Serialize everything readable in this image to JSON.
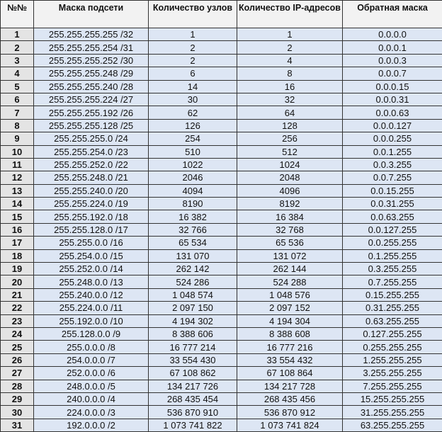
{
  "headers": [
    "№№",
    "Маска подсети",
    "Количество узлов",
    "Количество IP-адресов",
    "Обратная маска"
  ],
  "rows": [
    [
      "1",
      "255.255.255.255 /32",
      "1",
      "1",
      "0.0.0.0"
    ],
    [
      "2",
      "255.255.255.254 /31",
      "2",
      "2",
      "0.0.0.1"
    ],
    [
      "3",
      "255.255.255.252 /30",
      "2",
      "4",
      "0.0.0.3"
    ],
    [
      "4",
      "255.255.255.248 /29",
      "6",
      "8",
      "0.0.0.7"
    ],
    [
      "5",
      "255.255.255.240 /28",
      "14",
      "16",
      "0.0.0.15"
    ],
    [
      "6",
      "255.255.255.224 /27",
      "30",
      "32",
      "0.0.0.31"
    ],
    [
      "7",
      "255.255.255.192 /26",
      "62",
      "64",
      "0.0.0.63"
    ],
    [
      "8",
      "255.255.255.128 /25",
      "126",
      "128",
      "0.0.0.127"
    ],
    [
      "9",
      "255.255.255.0 /24",
      "254",
      "256",
      "0.0.0.255"
    ],
    [
      "10",
      "255.255.254.0 /23",
      "510",
      "512",
      "0.0.1.255"
    ],
    [
      "11",
      "255.255.252.0 /22",
      "1022",
      "1024",
      "0.0.3.255"
    ],
    [
      "12",
      "255.255.248.0 /21",
      "2046",
      "2048",
      "0.0.7.255"
    ],
    [
      "13",
      "255.255.240.0 /20",
      "4094",
      "4096",
      "0.0.15.255"
    ],
    [
      "14",
      "255.255.224.0 /19",
      "8190",
      "8192",
      "0.0.31.255"
    ],
    [
      "15",
      "255.255.192.0 /18",
      "16 382",
      "16 384",
      "0.0.63.255"
    ],
    [
      "16",
      "255.255.128.0 /17",
      "32 766",
      "32 768",
      "0.0.127.255"
    ],
    [
      "17",
      "255.255.0.0 /16",
      "65 534",
      "65 536",
      "0.0.255.255"
    ],
    [
      "18",
      "255.254.0.0 /15",
      "131 070",
      "131 072",
      "0.1.255.255"
    ],
    [
      "19",
      "255.252.0.0 /14",
      "262 142",
      "262 144",
      "0.3.255.255"
    ],
    [
      "20",
      "255.248.0.0 /13",
      "524 286",
      "524 288",
      "0.7.255.255"
    ],
    [
      "21",
      "255.240.0.0 /12",
      "1 048 574",
      "1 048 576",
      "0.15.255.255"
    ],
    [
      "22",
      "255.224.0.0 /11",
      "2 097 150",
      "2 097 152",
      "0.31.255.255"
    ],
    [
      "23",
      "255.192.0.0 /10",
      "4 194 302",
      "4 194 304",
      "0.63.255.255"
    ],
    [
      "24",
      "255.128.0.0 /9",
      "8 388 606",
      "8 388 608",
      "0.127.255.255"
    ],
    [
      "25",
      "255.0.0.0 /8",
      "16 777 214",
      "16 777 216",
      "0.255.255.255"
    ],
    [
      "26",
      "254.0.0.0 /7",
      "33 554 430",
      "33 554 432",
      "1.255.255.255"
    ],
    [
      "27",
      "252.0.0.0 /6",
      "67 108 862",
      "67 108 864",
      "3.255.255.255"
    ],
    [
      "28",
      "248.0.0.0 /5",
      "134 217 726",
      "134 217 728",
      "7.255.255.255"
    ],
    [
      "29",
      "240.0.0.0 /4",
      "268 435 454",
      "268 435 456",
      "15.255.255.255"
    ],
    [
      "30",
      "224.0.0.0 /3",
      "536 870 910",
      "536 870 912",
      "31.255.255.255"
    ],
    [
      "31",
      "192.0.0.0 /2",
      "1 073 741 822",
      "1 073 741 824",
      "63.255.255.255"
    ]
  ]
}
